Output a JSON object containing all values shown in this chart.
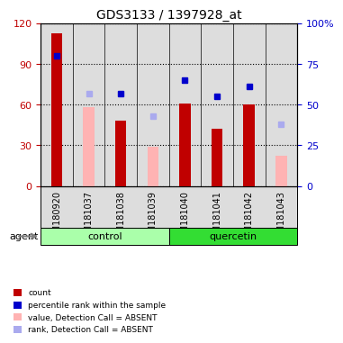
{
  "title": "GDS3133 / 1397928_at",
  "samples": [
    "GSM180920",
    "GSM181037",
    "GSM181038",
    "GSM181039",
    "GSM181040",
    "GSM181041",
    "GSM181042",
    "GSM181043"
  ],
  "groups": [
    "control",
    "control",
    "control",
    "control",
    "quercetin",
    "quercetin",
    "quercetin",
    "quercetin"
  ],
  "red_bars": [
    113,
    0,
    48,
    0,
    61,
    42,
    60,
    0
  ],
  "pink_bars": [
    0,
    58,
    0,
    29,
    0,
    0,
    0,
    22
  ],
  "blue_squares": [
    80,
    0,
    57,
    0,
    65,
    55,
    61,
    0
  ],
  "lavender_squares": [
    0,
    57,
    0,
    43,
    0,
    0,
    0,
    38
  ],
  "ylim_left": [
    0,
    120
  ],
  "ylim_right": [
    0,
    100
  ],
  "yticks_left": [
    0,
    30,
    60,
    90,
    120
  ],
  "ytick_labels_left": [
    "0",
    "30",
    "60",
    "90",
    "120"
  ],
  "ytick_labels_right": [
    "0",
    "25",
    "50",
    "75",
    "100%"
  ],
  "yticks_right": [
    0,
    25,
    50,
    75,
    100
  ],
  "red_color": "#C00000",
  "pink_color": "#FFB3B3",
  "blue_color": "#0000CC",
  "lavender_color": "#AAAAEE",
  "group_colors": {
    "control": "#AAFFAA",
    "quercetin": "#33DD33"
  },
  "bar_bg": "#DDDDDD",
  "bar_width": 0.35
}
